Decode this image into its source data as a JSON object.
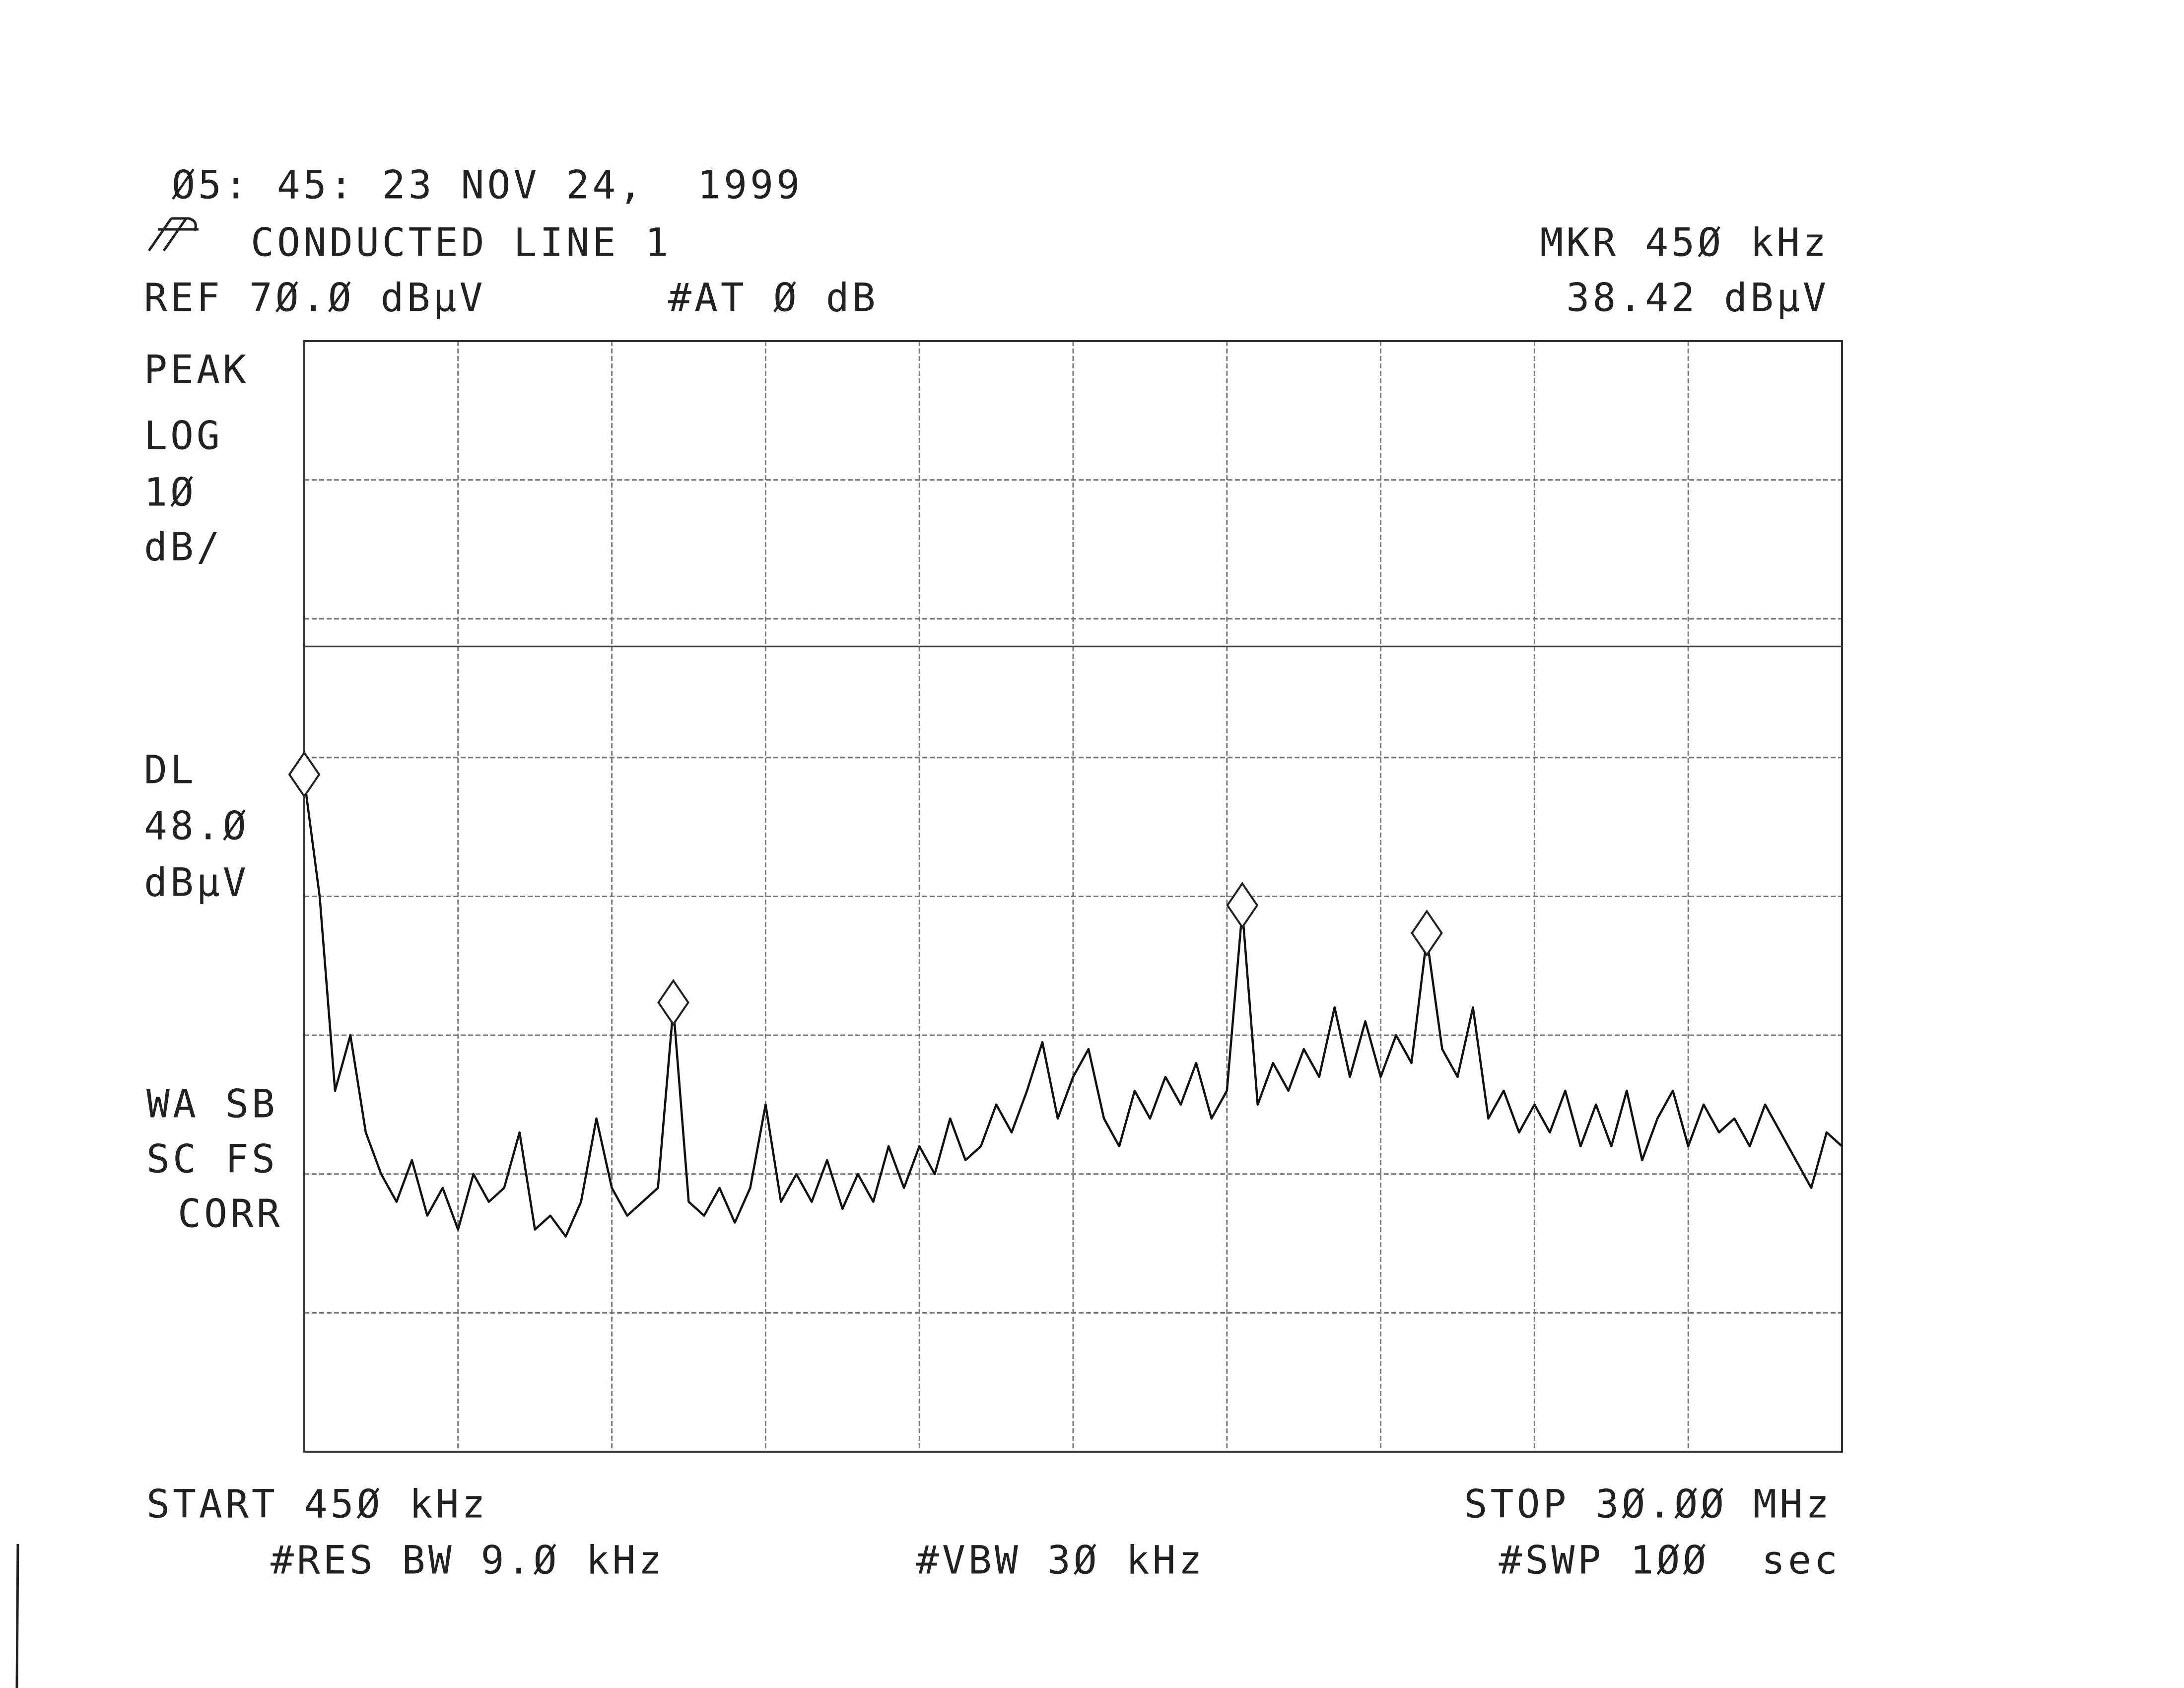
{
  "chart_data": {
    "type": "line",
    "timestamp": "Ø5: 45: 23 NOV 24,  1999",
    "title": "CONDUCTED LINE 1",
    "marker_readout": "MKR 45Ø kHz",
    "marker_level": "38.42 dBµV",
    "reference": "REF 7Ø.Ø dBµV",
    "attenuation": "#AT Ø dB",
    "side_labels": [
      "PEAK",
      "LOG",
      "1Ø",
      "dB/"
    ],
    "display_line_label": "DL",
    "display_line": {
      "value": 48,
      "label": "48.Ø"
    },
    "display_line_unit": "dBµV",
    "status_labels": [
      "WA SB",
      "SC FS",
      "CORR"
    ],
    "start": "START 45Ø kHz",
    "stop": "STOP 3Ø.ØØ MHz",
    "resolution_bw": "#RES BW 9.Ø kHz",
    "video_bw": "#VBW 3Ø kHz",
    "sweep": "#SWP 1ØØ  sec",
    "xlim": [
      0.45,
      30
    ],
    "xticks": [
      0.45,
      3.405,
      6.36,
      9.315,
      12.27,
      15.225,
      18.18,
      21.135,
      24.09,
      27.045,
      30
    ],
    "ylim": [
      -10,
      70
    ],
    "yticks": [
      -10,
      0,
      10,
      20,
      30,
      40,
      50,
      60,
      70
    ],
    "grid": true,
    "x": [
      0.45,
      0.7455,
      1.041,
      1.3365,
      1.632,
      1.9275,
      2.223,
      2.5185,
      2.814,
      3.1095,
      3.405,
      3.7005,
      3.996,
      4.2915,
      4.587,
      4.8825,
      5.178,
      5.4735,
      5.769,
      6.0645,
      6.36,
      6.6555,
      6.951,
      7.2465,
      7.542,
      7.8375,
      8.133,
      8.4285,
      8.724,
      9.0195,
      9.315,
      9.6105,
      9.906,
      10.2015,
      10.497,
      10.7925,
      11.088,
      11.3835,
      11.679,
      11.9745,
      12.27,
      12.5655,
      12.861,
      13.1565,
      13.452,
      13.7475,
      14.043,
      14.3385,
      14.634,
      14.9295,
      15.225,
      15.5205,
      15.816,
      16.1115,
      16.407,
      16.7025,
      16.998,
      17.2935,
      17.589,
      17.8845,
      18.18,
      18.4755,
      18.771,
      19.0665,
      19.362,
      19.6575,
      19.953,
      20.2485,
      20.544,
      20.8395,
      21.135,
      21.4305,
      21.726,
      22.0215,
      22.317,
      22.6125,
      22.908,
      23.2035,
      23.499,
      23.7945,
      24.09,
      24.3855,
      24.681,
      24.9765,
      25.272,
      25.5675,
      25.863,
      26.1585,
      26.454,
      26.7495,
      27.045,
      27.3405,
      27.636,
      27.9315,
      28.227,
      28.5225,
      28.818,
      29.1135,
      29.409,
      29.7045,
      30
    ],
    "series": [
      {
        "color": "#111111",
        "values": [
          38.42,
          30,
          16,
          20,
          13,
          10,
          8,
          11,
          7,
          9,
          6,
          10,
          8,
          9,
          13,
          6,
          7,
          5.5,
          8,
          14,
          9,
          7,
          8,
          9,
          22,
          8,
          7,
          9,
          6.5,
          9,
          15,
          8,
          10,
          8,
          11,
          7.5,
          10,
          8,
          12,
          9,
          12,
          10,
          14,
          11,
          12,
          15,
          13,
          16,
          19.5,
          14,
          17,
          19,
          14,
          12,
          16,
          14,
          17,
          15,
          18,
          14,
          16,
          29,
          15,
          18,
          16,
          19,
          17,
          22,
          17,
          21,
          17,
          20,
          18,
          27,
          19,
          17,
          22,
          14,
          16,
          13,
          15,
          13,
          16,
          12,
          15,
          12,
          16,
          11,
          14,
          16,
          12,
          15,
          13,
          14,
          12,
          15,
          13,
          11,
          9,
          13,
          12
        ]
      }
    ],
    "markers": {
      "x": [
        0.45,
        7.542,
        18.4755,
        22.0215
      ],
      "values": [
        38.42,
        22,
        29,
        27
      ]
    }
  }
}
